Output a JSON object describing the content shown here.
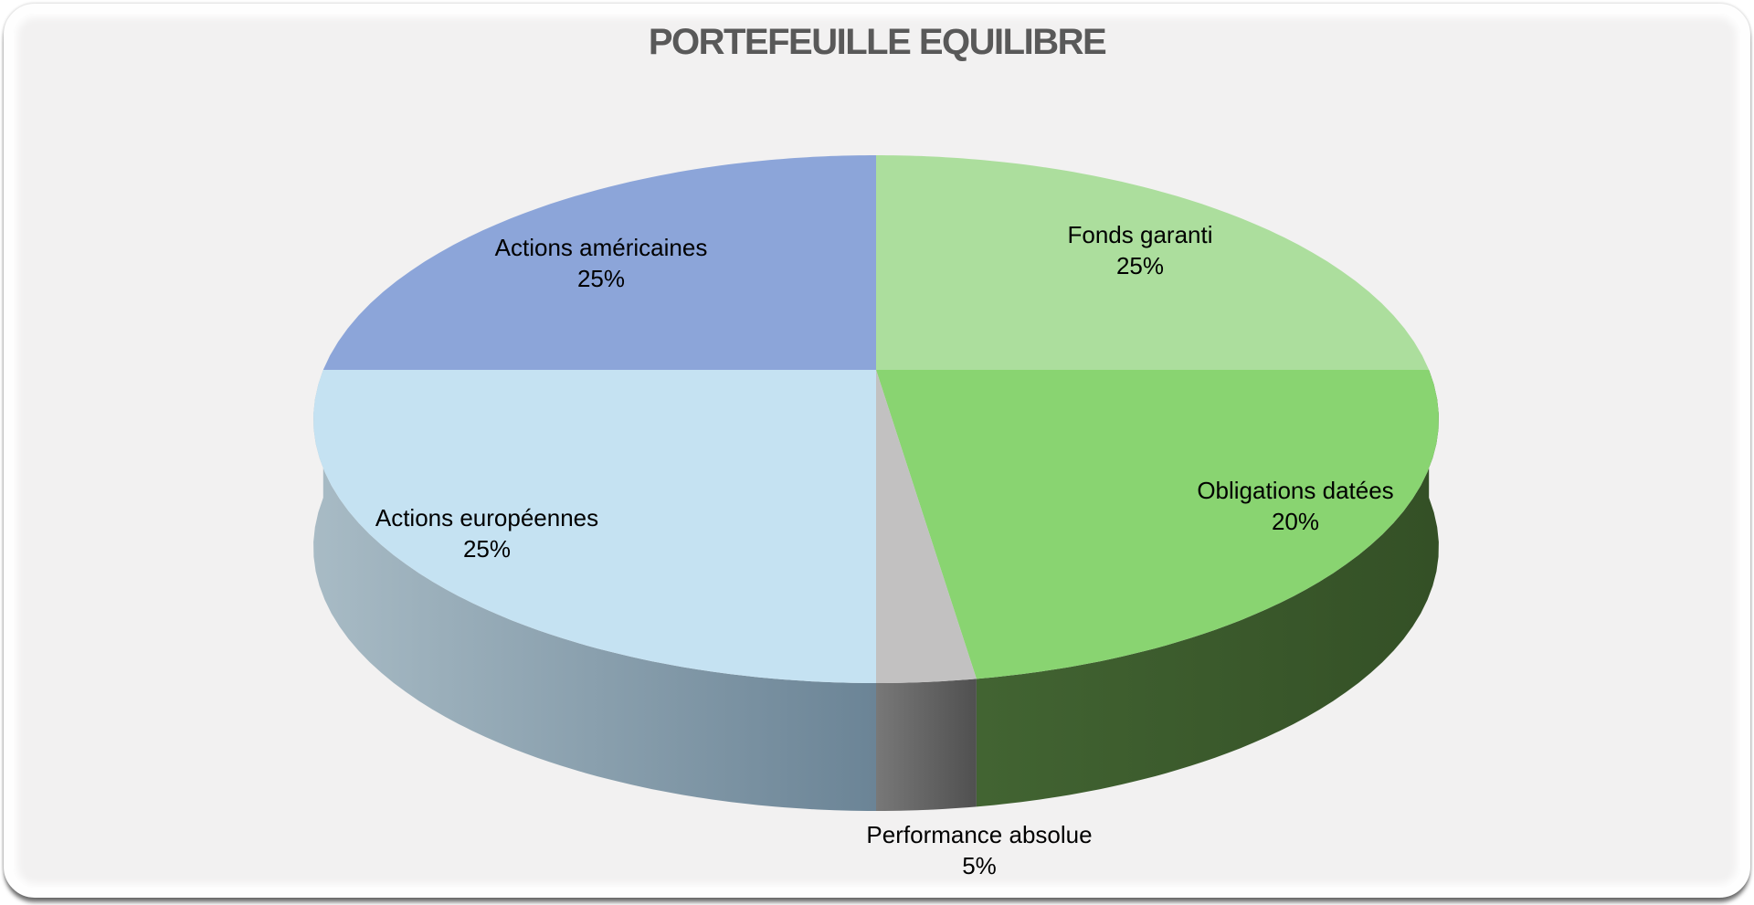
{
  "window": {
    "background_color": "#FFFFFF",
    "card_background_color": "#F2F1F1",
    "card_frame_color": "#FEFEFE"
  },
  "chart_data": {
    "type": "pie",
    "style": "3d",
    "title": "PORTEFEUILLE EQUILIBRE",
    "title_color": "#595959",
    "direction": "clockwise",
    "start_angle_deg": 0,
    "legend": "none",
    "data_labels": "category name + percentage",
    "percent_label_suffix": "%",
    "categories": [
      "Fonds garanti",
      "Obligations datées",
      "Performance absolue",
      "Actions européennes",
      "Actions américaines"
    ],
    "values": [
      25,
      20,
      5,
      25,
      25
    ],
    "slices": [
      {
        "label": "Fonds garanti",
        "pct": 25,
        "top_color": "#ACDE9D",
        "side_from": "#ACDE9D",
        "side_to": "#ACDE9D"
      },
      {
        "label": "Obligations datées",
        "pct": 20,
        "top_color": "#89D471",
        "side_from": "#426432",
        "side_to": "#345026"
      },
      {
        "label": "Performance absolue",
        "pct": 5,
        "top_color": "#C2C1C1",
        "side_from": "#787878",
        "side_to": "#505050"
      },
      {
        "label": "Actions européennes",
        "pct": 25,
        "top_color": "#C5E2F2",
        "side_from": "#A8BBC5",
        "side_to": "#6B8496"
      },
      {
        "label": "Actions américaines",
        "pct": 25,
        "top_color": "#8CA5D9",
        "side_from": "#8CA5D9",
        "side_to": "#8CA5D9"
      }
    ]
  }
}
